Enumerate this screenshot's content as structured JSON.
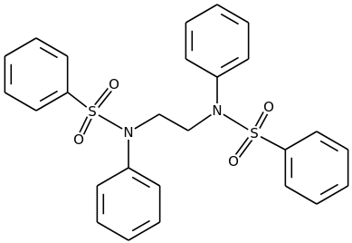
{
  "atoms": [
    {
      "label": "S"
    },
    {
      "label": "O"
    },
    {
      "label": "O"
    },
    {
      "label": "N"
    },
    {
      "label": "N"
    },
    {
      "label": "S"
    },
    {
      "label": "O"
    },
    {
      "label": "O"
    }
  ]
}
